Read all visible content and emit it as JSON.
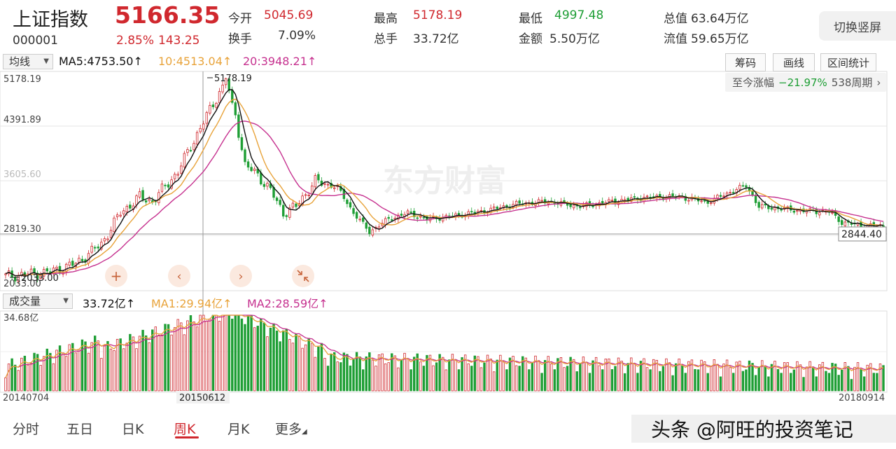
{
  "header": {
    "name": "上证指数",
    "price": "5166.35",
    "code": "000001",
    "change_pct": "2.85%",
    "change_abs": "143.25",
    "stats": [
      {
        "label": "今开",
        "value": "5045.69",
        "color": "#d0282e"
      },
      {
        "label": "最高",
        "value": "5178.19",
        "color": "#d0282e"
      },
      {
        "label": "最低",
        "value": "4997.48",
        "color": "#1e9e35"
      },
      {
        "label": "总值",
        "value": "63.64万亿",
        "color": "#333333"
      },
      {
        "label": "换手",
        "value": "7.09%",
        "color": "#333333"
      },
      {
        "label": "总手",
        "value": "33.72亿",
        "color": "#333333"
      },
      {
        "label": "金额",
        "value": "5.50万亿",
        "color": "#333333"
      },
      {
        "label": "流值",
        "value": "59.65万亿",
        "color": "#333333"
      }
    ],
    "switch_label": "切换竖屏"
  },
  "ma_bar": {
    "selector": "均线",
    "ma5": "MA5:4753.50↑",
    "ma10": "10:4513.04↑",
    "ma20": "20:3948.21↑",
    "tools": [
      "筹码",
      "画线",
      "区间统计"
    ]
  },
  "range": {
    "label": "至今涨幅",
    "pct": "−21.97%",
    "periods": "538周期",
    "chevron": "chevron-right-icon"
  },
  "price_chart": {
    "y_labels": [
      "5178.19",
      "4391.89",
      "3605.60",
      "2819.30",
      "2033.00"
    ],
    "peak_label": "5178.19",
    "low_label": "2033.00",
    "current_label": "2844.40",
    "watermark": "东方财富",
    "controls": [
      "plus-icon",
      "chevron-left-icon",
      "chevron-right-icon",
      "collapse-icon"
    ]
  },
  "vol_bar": {
    "selector": "成交量",
    "vol": "33.72亿↑",
    "ma1": "MA1:29.94亿↑",
    "ma2": "MA2:28.59亿↑",
    "max_label": "34.68亿"
  },
  "x_labels": {
    "start": "20140704",
    "mid": "20150612",
    "end": "20180914"
  },
  "tabs": [
    "分时",
    "五日",
    "日K",
    "周K",
    "月K",
    "更多"
  ],
  "active_tab": "周K",
  "watermark_author": "头条 @阿旺的投资笔记",
  "colors": {
    "up": "#d0282e",
    "down": "#1e9e35",
    "ma5": "#111111",
    "ma10": "#e8a33a",
    "ma20": "#c6318f"
  },
  "chart_data": {
    "type": "candlestick",
    "x_range": [
      "20140704",
      "20180914"
    ],
    "y_range": [
      2033.0,
      5178.19
    ],
    "key_points": [
      {
        "label": "20140704",
        "close": 2050
      },
      {
        "label": "20150612",
        "close": 5166.35,
        "high": 5178.19
      },
      {
        "label": "20180914",
        "close": 2844.4
      }
    ],
    "volume_max": "34.68亿"
  }
}
